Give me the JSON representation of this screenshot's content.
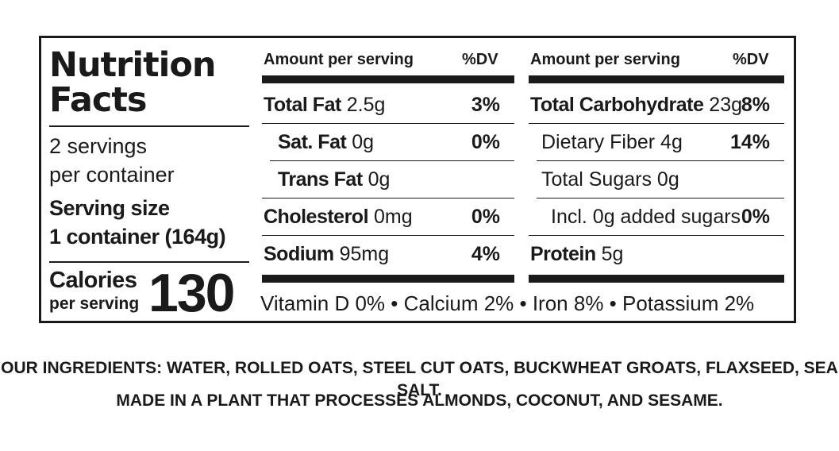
{
  "label": {
    "title_line1": "Nutrition",
    "title_line2": "Facts",
    "servings_line1": "2 servings",
    "servings_line2": "per container",
    "serving_size_label": "Serving size",
    "serving_size_value": "1 container (164g)",
    "calories_label": "Calories",
    "calories_sub": "per serving",
    "calories_value": "130"
  },
  "left_column": {
    "header_amount": "Amount per serving",
    "header_dv": "%DV",
    "rows": [
      {
        "name": "Total Fat",
        "amount": "2.5g",
        "dv": "3%"
      },
      {
        "name": "Sat. Fat",
        "amount": "0g",
        "dv": "0%"
      },
      {
        "name": "Trans Fat",
        "amount": "0g",
        "dv": ""
      },
      {
        "name": "Cholesterol",
        "amount": "0mg",
        "dv": "0%"
      },
      {
        "name": "Sodium",
        "amount": "95mg",
        "dv": "4%"
      }
    ]
  },
  "right_column": {
    "header_amount": "Amount per serving",
    "header_dv": "%DV",
    "rows": [
      {
        "name": "Total Carbohydrate",
        "amount": "23g",
        "dv": "8%"
      },
      {
        "name": "Dietary Fiber 4g",
        "amount": "",
        "dv": "14%"
      },
      {
        "name": "Total Sugars 0g",
        "amount": "",
        "dv": ""
      },
      {
        "name": "Incl. 0g added sugars",
        "amount": "",
        "dv": "0%"
      },
      {
        "name": "Protein",
        "amount": "5g",
        "dv": ""
      }
    ]
  },
  "vitamins": "Vitamin D 0% • Calcium 2% • Iron 8% • Potassium 2%",
  "ingredients_line1": "OUR INGREDIENTS:  WATER, ROLLED OATS, STEEL CUT OATS, BUCKWHEAT GROATS, FLAXSEED, SEA SALT.",
  "ingredients_line2": "MADE IN A PLANT THAT PROCESSES ALMONDS, COCONUT, AND SESAME."
}
